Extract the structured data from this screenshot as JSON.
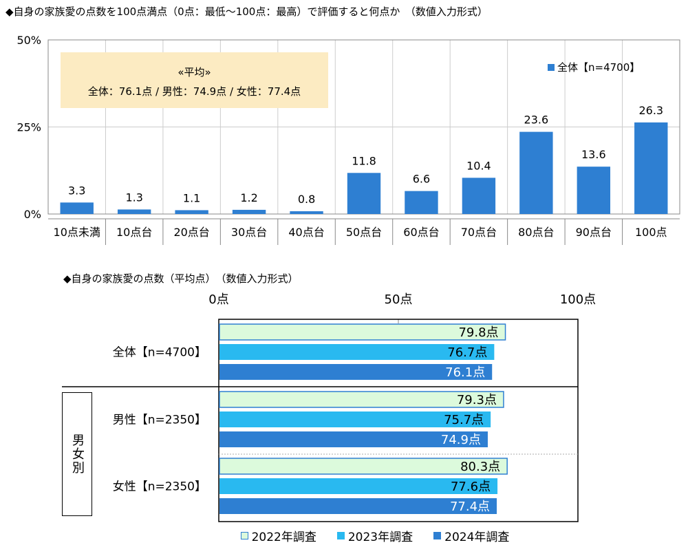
{
  "title1": "◆自身の家族愛の点数を100点満点（0点：最低～100点：最高）で評価すると何点か　（数値入力形式）",
  "title2": "◆自身の家族愛の点数（平均点）　（数値入力形式）",
  "average_box": {
    "heading": "«平均»",
    "body": "全体：76.1点 / 男性：74.9点 / 女性：77.4点"
  },
  "legend1": {
    "label": "全体【n=4700】",
    "color": "#2e7fd2"
  },
  "group_label": "男女別",
  "colors": {
    "y2022": "#dcfadc",
    "y2023": "#29b9f0",
    "y2024": "#2e7fd2",
    "gridline": "#cccccc"
  },
  "chart_data": [
    {
      "type": "bar",
      "categories": [
        "10点未満",
        "10点台",
        "20点台",
        "30点台",
        "40点台",
        "50点台",
        "60点台",
        "70点台",
        "80点台",
        "90点台",
        "100点"
      ],
      "values": [
        3.3,
        1.3,
        1.1,
        1.2,
        0.8,
        11.8,
        6.6,
        10.4,
        23.6,
        13.6,
        26.3
      ],
      "value_labels": [
        "3.3",
        "1.3",
        "1.1",
        "1.2",
        "0.8",
        "11.8",
        "6.6",
        "10.4",
        "23.6",
        "13.6",
        "26.3"
      ],
      "series": [
        {
          "name": "全体【n=4700】",
          "values": [
            3.3,
            1.3,
            1.1,
            1.2,
            0.8,
            11.8,
            6.6,
            10.4,
            23.6,
            13.6,
            26.3
          ]
        }
      ],
      "ylim": [
        0,
        50
      ],
      "yticks": [
        "0%",
        "25%",
        "50%"
      ],
      "ytick_values": [
        0,
        25,
        50
      ],
      "grid": true,
      "legend": "top-right"
    },
    {
      "type": "bar",
      "orientation": "horizontal",
      "categories": [
        "全体【n=4700】",
        "男性【n=2350】",
        "女性【n=2350】"
      ],
      "series": [
        {
          "name": "2022年調査",
          "values": [
            79.8,
            79.3,
            80.3
          ],
          "labels": [
            "79.8点",
            "79.3点",
            "80.3点"
          ]
        },
        {
          "name": "2023年調査",
          "values": [
            76.7,
            75.7,
            77.6
          ],
          "labels": [
            "76.7点",
            "75.7点",
            "77.6点"
          ]
        },
        {
          "name": "2024年調査",
          "values": [
            76.1,
            74.9,
            77.4
          ],
          "labels": [
            "76.1点",
            "74.9点",
            "77.4点"
          ]
        }
      ],
      "xlim": [
        0,
        100
      ],
      "xticks": [
        "0点",
        "50点",
        "100点"
      ],
      "xtick_values": [
        0,
        50,
        100
      ],
      "legend": "bottom"
    }
  ]
}
